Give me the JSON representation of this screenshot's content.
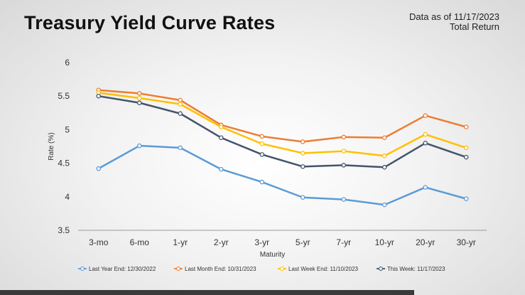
{
  "header": {
    "title": "Treasury Yield Curve Rates",
    "as_of_line1": "Data as of 11/17/2023",
    "as_of_line2": "Total Return"
  },
  "chart_data": {
    "type": "line",
    "title": "Treasury Yield Curve Rates",
    "xlabel": "Maturity",
    "ylabel": "Rate (%)",
    "ylim": [
      3.5,
      6
    ],
    "yticks": [
      "3.5",
      "4",
      "4.5",
      "5",
      "5.5",
      "6"
    ],
    "grid": false,
    "legend_position": "bottom",
    "categories": [
      "3-mo",
      "6-mo",
      "1-yr",
      "2-yr",
      "3-yr",
      "5-yr",
      "7-yr",
      "10-yr",
      "20-yr",
      "30-yr"
    ],
    "series": [
      {
        "name": "Last Year End:  12/30/2022",
        "color": "#5b9bd5",
        "values": [
          4.42,
          4.76,
          4.73,
          4.41,
          4.22,
          3.99,
          3.96,
          3.88,
          4.14,
          3.97
        ]
      },
      {
        "name": "Last Month End: 10/31/2023",
        "color": "#ed7d31",
        "values": [
          5.59,
          5.54,
          5.44,
          5.07,
          4.9,
          4.82,
          4.89,
          4.88,
          5.21,
          5.04
        ]
      },
      {
        "name": "Last Week End: 11/10/2023",
        "color": "#ffc000",
        "values": [
          5.55,
          5.47,
          5.38,
          5.04,
          4.79,
          4.65,
          4.68,
          4.61,
          4.93,
          4.73
        ]
      },
      {
        "name": "This Week:  11/17/2023",
        "color": "#44546a",
        "values": [
          5.5,
          5.4,
          5.24,
          4.88,
          4.63,
          4.45,
          4.47,
          4.44,
          4.8,
          4.59
        ]
      }
    ]
  }
}
